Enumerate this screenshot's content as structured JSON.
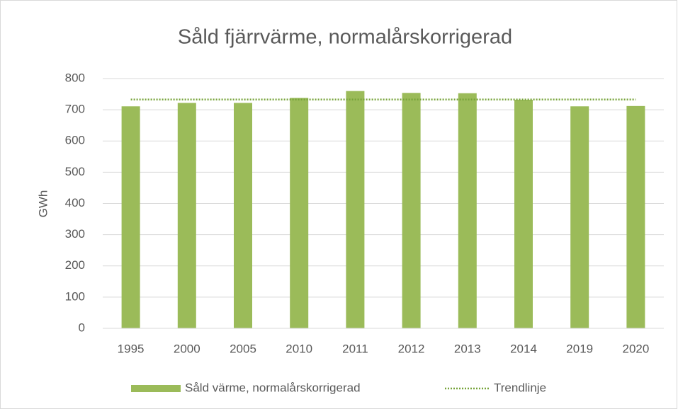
{
  "chart_data": {
    "type": "bar",
    "title": "Såld fjärrvärme, normalårskorrigerad",
    "y_label": "GWh",
    "categories": [
      "1995",
      "2000",
      "2005",
      "2010",
      "2011",
      "2012",
      "2013",
      "2014",
      "2019",
      "2020"
    ],
    "series": [
      {
        "name": "Såld värme, normalårskorrigerad",
        "color": "#9bbb59",
        "values": [
          711,
          722,
          722,
          738,
          760,
          754,
          753,
          732,
          711,
          712
        ]
      },
      {
        "name": "Trendlinje",
        "color": "#77a33a",
        "type": "line",
        "line_style": "dotted",
        "values": [
          733,
          733,
          733,
          733,
          733,
          733,
          733,
          733,
          733,
          733
        ]
      }
    ],
    "ylim": [
      0,
      800
    ],
    "yticks": [
      0,
      100,
      200,
      300,
      400,
      500,
      600,
      700,
      800
    ],
    "grid": true,
    "legend": "bottom"
  }
}
